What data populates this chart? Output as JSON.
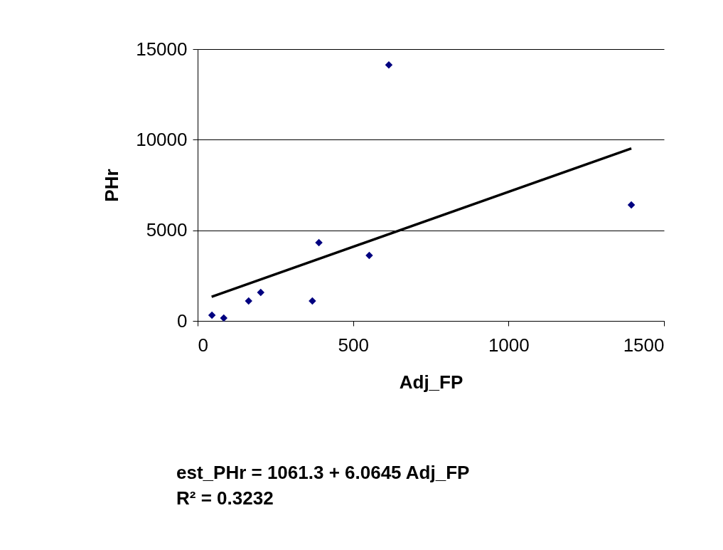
{
  "chart_data": {
    "type": "scatter",
    "xlabel": "Adj_FP",
    "ylabel": "PHr",
    "xlim": [
      0,
      1500
    ],
    "xticks": [
      0,
      500,
      1000,
      1500
    ],
    "ylim": [
      0,
      15000
    ],
    "yticks": [
      0,
      5000,
      10000,
      15000
    ],
    "grid": "y",
    "series": [
      {
        "type": "scatter",
        "marker": "diamond",
        "color": "#000080",
        "x": [
          46,
          84,
          164,
          203,
          369,
          390,
          552,
          615,
          1395
        ],
        "values": [
          310,
          160,
          1100,
          1570,
          1100,
          4320,
          3610,
          14130,
          6400
        ]
      },
      {
        "type": "line",
        "color": "#000000",
        "marker": "none",
        "line_style": "solid",
        "x": [
          45,
          1395
        ],
        "values": [
          1330,
          9520
        ]
      }
    ],
    "annotations": [
      "est_PHr = 1061.3 + 6.0645 Adj_FP",
      "R² = 0.3232"
    ]
  }
}
